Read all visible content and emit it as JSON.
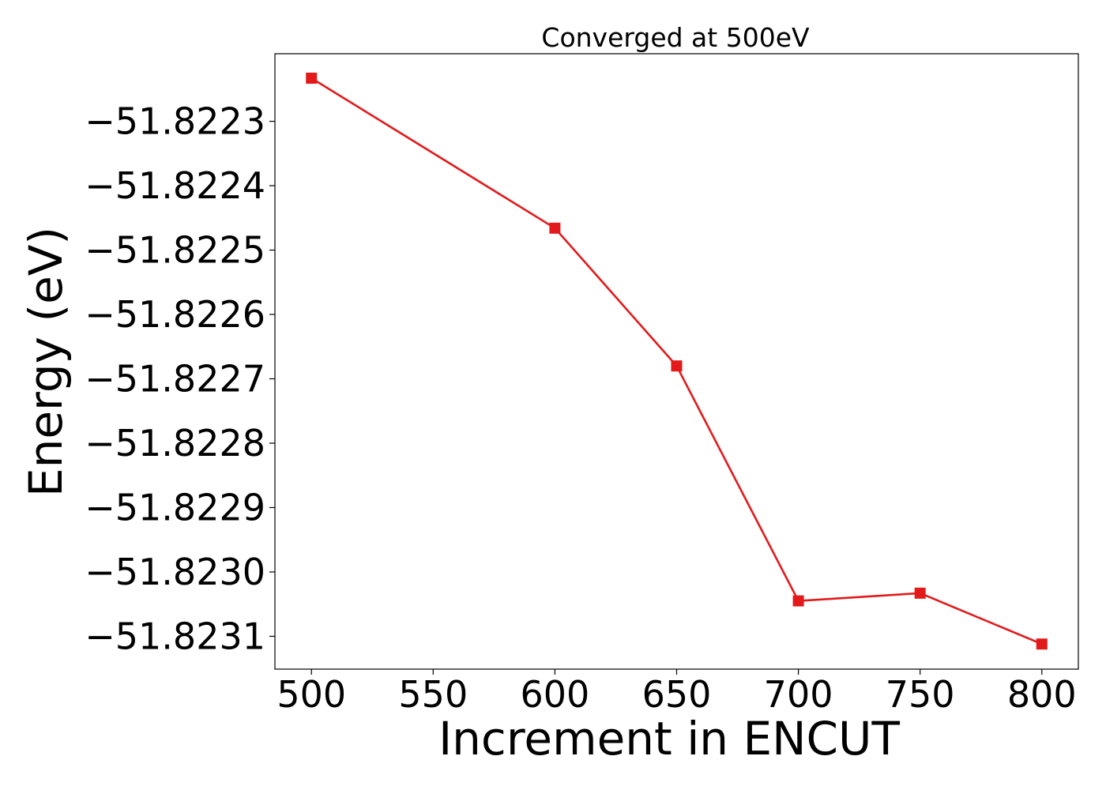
{
  "chart_data": {
    "type": "line",
    "title": "Converged at 500eV",
    "xlabel": "Increment in ENCUT",
    "ylabel": "Energy (eV)",
    "x": [
      500,
      600,
      650,
      700,
      750,
      800
    ],
    "series": [
      {
        "values": [
          -51.822233,
          -51.822466,
          -51.82268,
          -51.823045,
          -51.823033,
          -51.823112
        ],
        "color": "#e31a1c",
        "marker": "square"
      }
    ],
    "xlim": [
      485,
      815
    ],
    "ylim": [
      -51.823151,
      -51.822195
    ],
    "xticks": [
      500,
      550,
      600,
      650,
      700,
      750,
      800
    ],
    "xtick_labels": [
      "500",
      "550",
      "600",
      "650",
      "700",
      "750",
      "800"
    ],
    "yticks": [
      -51.8223,
      -51.8224,
      -51.8225,
      -51.8226,
      -51.8227,
      -51.8228,
      -51.8229,
      -51.823,
      -51.8231
    ],
    "ytick_labels": [
      "−51.8223",
      "−51.8224",
      "−51.8225",
      "−51.8226",
      "−51.8227",
      "−51.8228",
      "−51.8229",
      "−51.8230",
      "−51.8231"
    ],
    "grid": false,
    "legend": "none"
  }
}
